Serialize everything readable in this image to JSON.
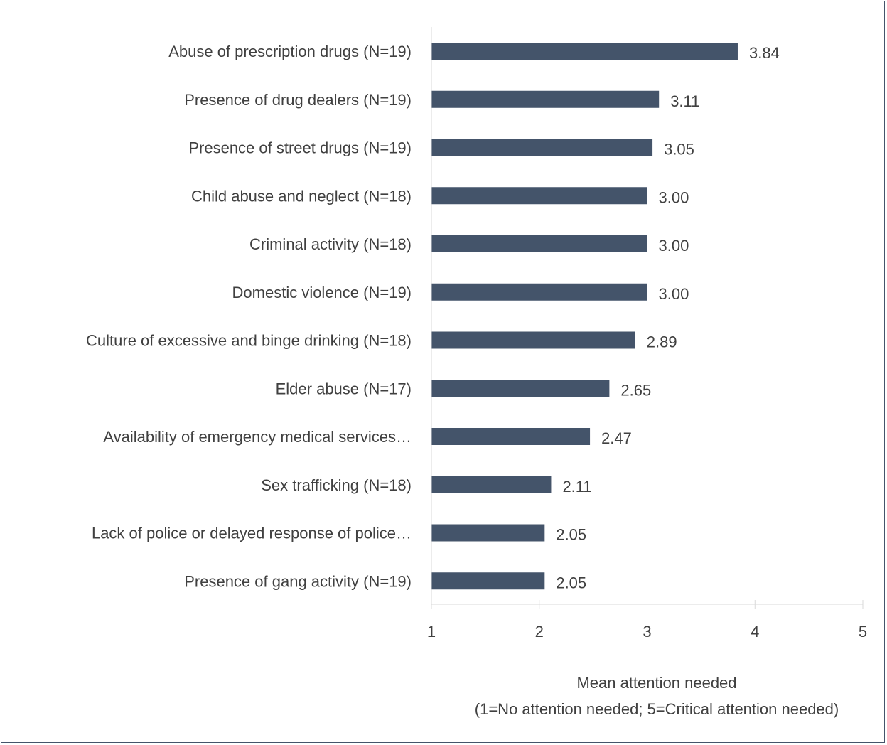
{
  "chart_data": {
    "type": "bar",
    "orientation": "horizontal",
    "categories": [
      "Abuse of prescription drugs (N=19)",
      "Presence of drug dealers (N=19)",
      "Presence of street drugs (N=19)",
      "Child abuse and neglect (N=18)",
      "Criminal activity (N=18)",
      "Domestic violence (N=19)",
      "Culture of excessive and binge drinking (N=18)",
      "Elder abuse (N=17)",
      "Availability of emergency medical services…",
      "Sex trafficking (N=18)",
      "Lack of police or delayed response of police…",
      "Presence of gang activity (N=19)"
    ],
    "values": [
      3.84,
      3.11,
      3.05,
      3.0,
      3.0,
      3.0,
      2.89,
      2.65,
      2.47,
      2.11,
      2.05,
      2.05
    ],
    "value_labels": [
      "3.84",
      "3.11",
      "3.05",
      "3.00",
      "3.00",
      "3.00",
      "2.89",
      "2.65",
      "2.47",
      "2.11",
      "2.05",
      "2.05"
    ],
    "highlight_index": 0,
    "xlim": [
      1,
      5
    ],
    "x_ticks": [
      "1",
      "2",
      "3",
      "4",
      "5"
    ],
    "xlabel_line1": "Mean attention needed",
    "xlabel_line2": "(1=No attention needed; 5=Critical attention needed)",
    "grid": false,
    "legend": "none",
    "colors": {
      "bar": "#44546a",
      "highlight_label": "#ff0000",
      "text": "#404040",
      "axis": "#d9d9d9",
      "border": "#44546a"
    }
  }
}
